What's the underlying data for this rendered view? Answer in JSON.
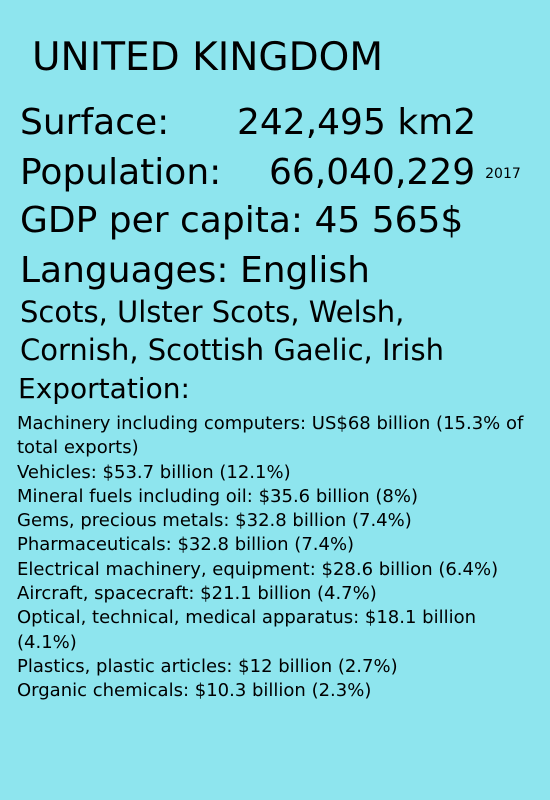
{
  "title": "UNITED KINGDOM",
  "surface": {
    "label": "Surface:",
    "value": "242,495 km2"
  },
  "population": {
    "label": "Population:",
    "value": "66,040,229",
    "year": "2017"
  },
  "gdp": "GDP per capita: 45 565$",
  "languages": {
    "main": "Languages: English",
    "others": "Scots, Ulster Scots, Welsh, Cornish, Scottish Gaelic, Irish"
  },
  "exportation": {
    "heading": "Exportation:",
    "items": [
      "Machinery including computers: US$68 billion (15.3% of total exports)",
      "Vehicles: $53.7 billion (12.1%)",
      "Mineral fuels including oil: $35.6 billion (8%)",
      "Gems, precious metals: $32.8 billion (7.4%)",
      "Pharmaceuticals: $32.8 billion (7.4%)",
      "Electrical machinery, equipment: $28.6 billion (6.4%)",
      "Aircraft, spacecraft: $21.1 billion (4.7%)",
      "Optical, technical, medical apparatus: $18.1 billion (4.1%)",
      "Plastics, plastic articles: $12 billion (2.7%)",
      "Organic chemicals: $10.3 billion (2.3%)"
    ]
  },
  "colors": {
    "background": "#8ee5ee",
    "text": "#000000"
  }
}
